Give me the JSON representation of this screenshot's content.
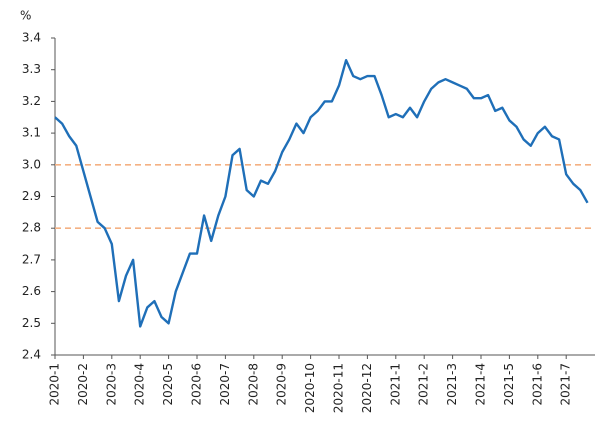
{
  "chart_data": {
    "type": "line",
    "ylabel": "%",
    "categories": [
      "2020-1",
      null,
      null,
      null,
      "2020-2",
      null,
      null,
      null,
      "2020-3",
      null,
      null,
      null,
      "2020-4",
      null,
      null,
      null,
      "2020-5",
      null,
      null,
      null,
      "2020-6",
      null,
      null,
      null,
      "2020-7",
      null,
      null,
      null,
      "2020-8",
      null,
      null,
      null,
      "2020-9",
      null,
      null,
      null,
      "2020-10",
      null,
      null,
      null,
      "2020-11",
      null,
      null,
      null,
      "2020-12",
      null,
      null,
      null,
      "2021-1",
      null,
      null,
      null,
      "2021-2",
      null,
      null,
      null,
      "2021-3",
      null,
      null,
      null,
      "2021-4",
      null,
      null,
      null,
      "2021-5",
      null,
      null,
      null,
      "2021-6",
      null,
      null,
      null,
      "2021-7",
      null,
      null,
      null
    ],
    "series": [
      {
        "color": "#1f6fb8",
        "values": [
          3.15,
          3.13,
          3.09,
          3.06,
          2.98,
          2.9,
          2.82,
          2.8,
          2.75,
          2.57,
          2.65,
          2.7,
          2.49,
          2.55,
          2.57,
          2.52,
          2.5,
          2.6,
          2.66,
          2.72,
          2.72,
          2.84,
          2.76,
          2.84,
          2.9,
          3.03,
          3.05,
          2.92,
          2.9,
          2.95,
          2.94,
          2.98,
          3.04,
          3.08,
          3.13,
          3.1,
          3.15,
          3.17,
          3.2,
          3.2,
          3.25,
          3.33,
          3.28,
          3.27,
          3.28,
          3.28,
          3.22,
          3.15,
          3.16,
          3.15,
          3.18,
          3.15,
          3.2,
          3.24,
          3.26,
          3.27,
          3.26,
          3.25,
          3.24,
          3.21,
          3.21,
          3.22,
          3.17,
          3.18,
          3.14,
          3.12,
          3.08,
          3.06,
          3.1,
          3.12,
          3.09,
          3.08,
          2.97,
          2.94,
          2.92,
          2.88
        ]
      }
    ],
    "ylim": [
      2.4,
      3.4
    ],
    "yticks": [
      2.4,
      2.5,
      2.6,
      2.7,
      2.8,
      2.9,
      {
        "value": 3,
        "label": "3.0"
      },
      3.1,
      3.2,
      3.3,
      3.4
    ],
    "hlines": [
      {
        "value": 3,
        "color": "#f4b183"
      },
      {
        "value": 2.8,
        "color": "#f4b183"
      }
    ]
  }
}
